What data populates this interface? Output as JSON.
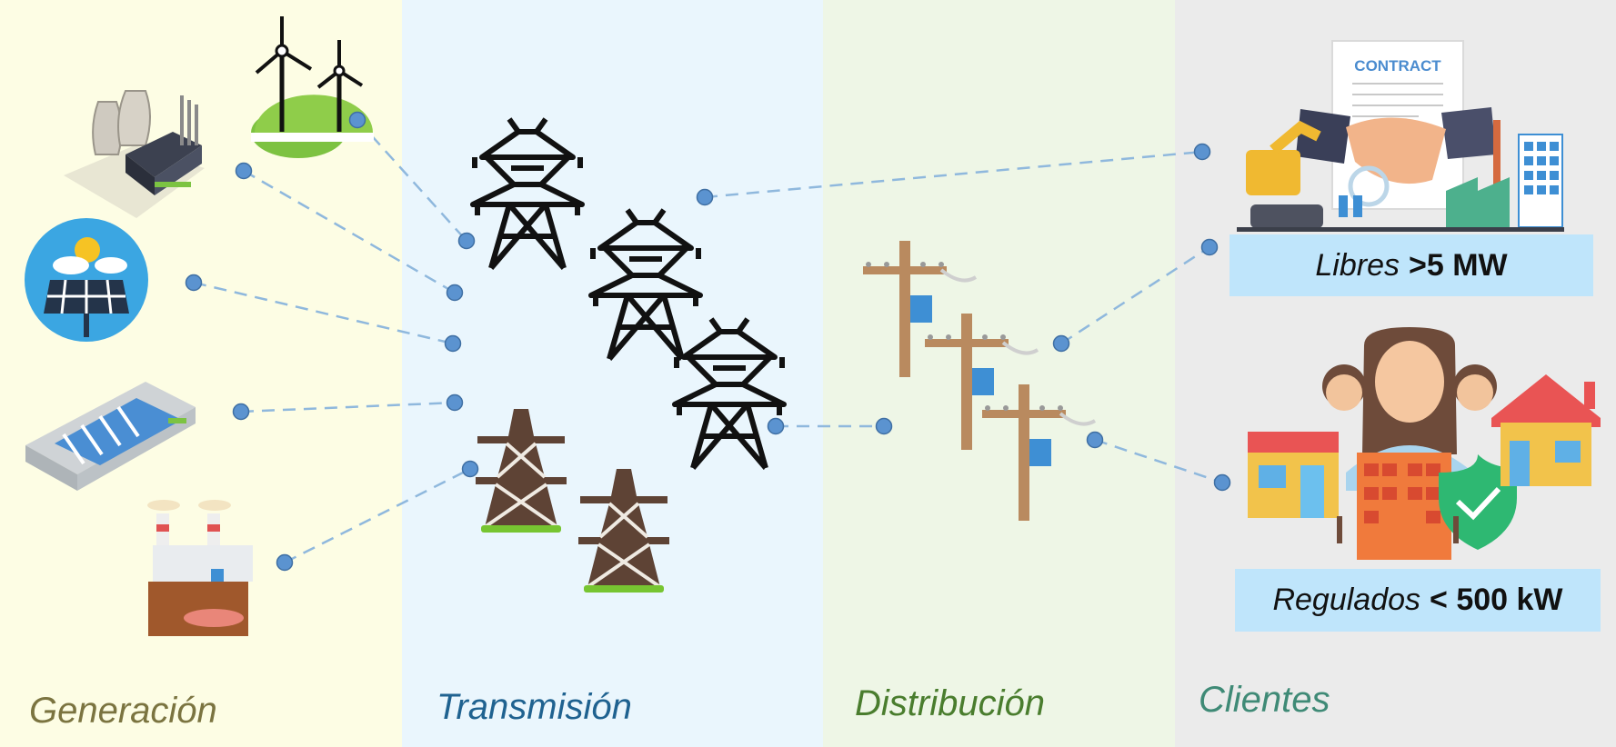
{
  "colors": {
    "generation_bg": "#fdfde4",
    "transmission_bg": "#eaf6fd",
    "distribution_bg": "#eef6e6",
    "clients_bg": "#ebebeb",
    "generation_label": "#7b7440",
    "transmission_label": "#1f6290",
    "distribution_label": "#4a7d2e",
    "clients_label": "#3f8a76",
    "connector": "#8fb8dd",
    "node": "#5b93d0",
    "client_box": "#bfe5fb"
  },
  "zones": {
    "generation": "Generación",
    "transmission": "Transmisión",
    "distribution": "Distribución",
    "clients": "Clientes"
  },
  "clients": {
    "libres": {
      "label": "Libres",
      "threshold": ">5 MW"
    },
    "regulados": {
      "label": "Regulados",
      "threshold": "< 500 kW"
    }
  },
  "contract_text": "CONTRACT",
  "icons": {
    "generation": [
      "wind-turbines-icon",
      "thermal-plant-icon",
      "solar-panel-icon",
      "hydro-dam-icon",
      "factory-icon"
    ],
    "transmission": [
      "high-voltage-tower-icon",
      "steel-lattice-tower-icon"
    ],
    "distribution": [
      "utility-pole-icon"
    ],
    "clients": [
      "contract-handshake-icon",
      "people-buildings-icon"
    ]
  }
}
